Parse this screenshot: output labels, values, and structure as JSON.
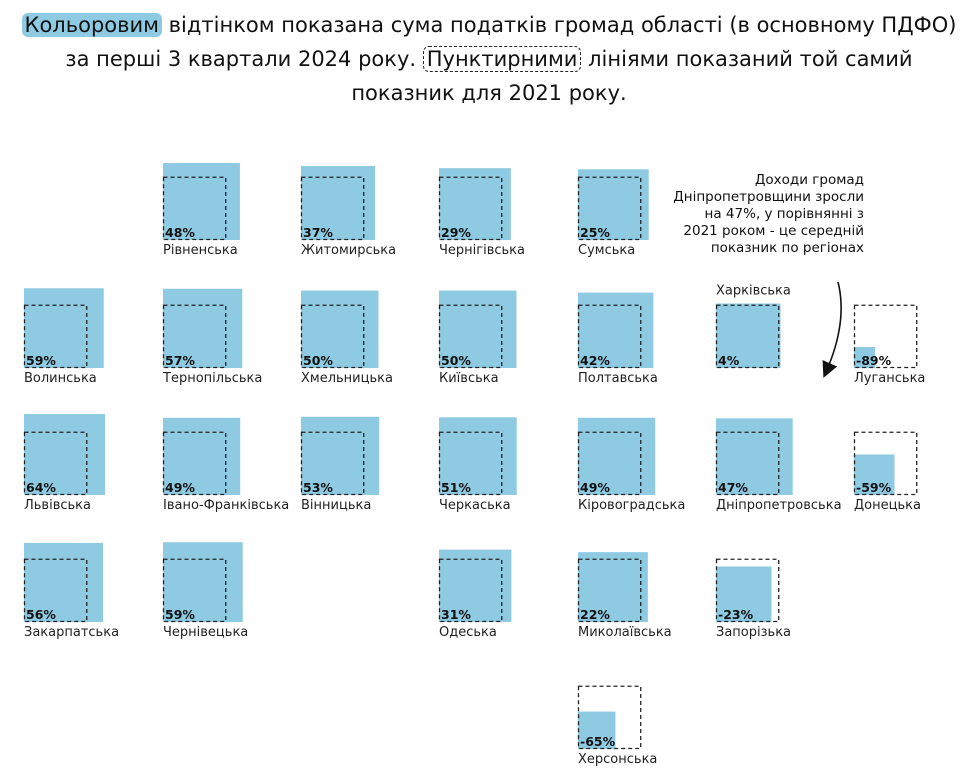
{
  "title": {
    "fill_word": "Кольоровим",
    "part1": " відтінком показана сума податків громад області (в основному ПДФО)",
    "part2": "за перші 3 квартали 2024 року. ",
    "dashed_word": "Пунктирними",
    "part3": " лініями показаний той самий",
    "part4": "показник для 2021 року."
  },
  "annotation": [
    "Доходи громад",
    "Дніпропетровщини зросли",
    "на 47%, у порівнянні з",
    "2021 роком - це середній",
    "показник по регіонах"
  ],
  "colors": {
    "fill": "#8ecae2",
    "dashed": "#222222"
  },
  "chart_data": {
    "type": "square-map",
    "unit": "%",
    "regions": [
      {
        "name": "Рівненська",
        "label": "48%",
        "change": 48,
        "col": 0,
        "row": 0
      },
      {
        "name": "Житомирська",
        "label": "37%",
        "change": 37,
        "col": 1,
        "row": 0
      },
      {
        "name": "Чернігівська",
        "label": "29%",
        "change": 29,
        "col": 2,
        "row": 0
      },
      {
        "name": "Сумська",
        "label": "25%",
        "change": 25,
        "col": 3,
        "row": 0
      },
      {
        "name": "Волинська",
        "label": "59%",
        "change": 59,
        "col": -1,
        "row": 1
      },
      {
        "name": "Тернопільська",
        "label": "57%",
        "change": 57,
        "col": 0,
        "row": 1
      },
      {
        "name": "Хмельницька",
        "label": "50%",
        "change": 50,
        "col": 1,
        "row": 1
      },
      {
        "name": "Київська",
        "label": "50%",
        "change": 50,
        "col": 2,
        "row": 1
      },
      {
        "name": "Полтавська",
        "label": "42%",
        "change": 42,
        "col": 3,
        "row": 1
      },
      {
        "name": "Харківська",
        "label": "4%",
        "change": 4,
        "col": 4,
        "row": 1,
        "name_on_top": true
      },
      {
        "name": "Луганська",
        "label": "-89%",
        "change": -89,
        "col": 5,
        "row": 1
      },
      {
        "name": "Львівська",
        "label": "64%",
        "change": 64,
        "col": -1,
        "row": 2
      },
      {
        "name": "Івано-Франківська",
        "label": "49%",
        "change": 49,
        "col": 0,
        "row": 2
      },
      {
        "name": "Вінницька",
        "label": "53%",
        "change": 53,
        "col": 1,
        "row": 2
      },
      {
        "name": "Черкаська",
        "label": "51%",
        "change": 51,
        "col": 2,
        "row": 2
      },
      {
        "name": "Кіровоградська",
        "label": "49%",
        "change": 49,
        "col": 3,
        "row": 2
      },
      {
        "name": "Дніпропетровська",
        "label": "47%",
        "change": 47,
        "col": 4,
        "row": 2
      },
      {
        "name": "Донецька",
        "label": "-59%",
        "change": -59,
        "col": 5,
        "row": 2
      },
      {
        "name": "Закарпатська",
        "label": "56%",
        "change": 56,
        "col": -1,
        "row": 3
      },
      {
        "name": "Чернівецька",
        "label": "59%",
        "change": 59,
        "col": 0,
        "row": 3
      },
      {
        "name": "Одеська",
        "label": "31%",
        "change": 31,
        "col": 2,
        "row": 3
      },
      {
        "name": "Миколаївська",
        "label": "22%",
        "change": 22,
        "col": 3,
        "row": 3
      },
      {
        "name": "Запорізька",
        "label": "-23%",
        "change": -23,
        "col": 4,
        "row": 3
      },
      {
        "name": "Херсонська",
        "label": "-65%",
        "change": -65,
        "col": 3,
        "row": 4
      }
    ]
  }
}
